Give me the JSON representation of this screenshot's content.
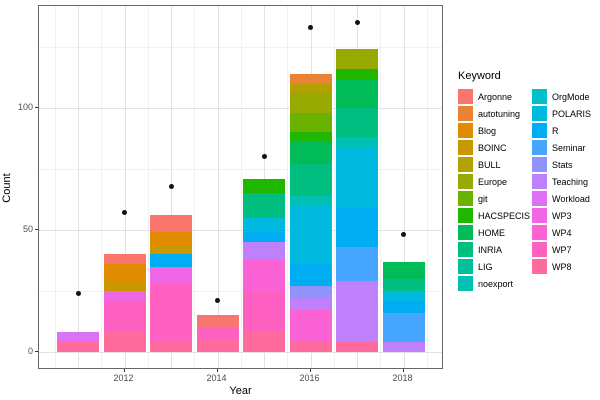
{
  "chart_data": {
    "type": "bar",
    "stacked": true,
    "title": "",
    "xlabel": "Year",
    "ylabel": "Count",
    "legend_title": "Keyword",
    "legend_position": "right",
    "ylim": [
      0,
      142
    ],
    "y_ticks": [
      0,
      50,
      100
    ],
    "y_minor_gridlines": [
      25,
      75,
      125
    ],
    "x_tick_labels": [
      "2012",
      "2014",
      "2016",
      "2018"
    ],
    "categories": [
      "2011",
      "2012",
      "2013",
      "2014",
      "2015",
      "2016",
      "2017",
      "2018"
    ],
    "keywords": [
      "Argonne",
      "autotuning",
      "Blog",
      "BOINC",
      "BULL",
      "Europe",
      "git",
      "HACSPECIS",
      "HOME",
      "INRIA",
      "LIG",
      "noexport",
      "OrgMode",
      "POLARIS",
      "R",
      "Seminar",
      "Stats",
      "Teaching",
      "Workload",
      "WP3",
      "WP4",
      "WP7",
      "WP8"
    ],
    "palette": {
      "Argonne": "#F8766D",
      "autotuning": "#EB8335",
      "Blog": "#E08B00",
      "BOINC": "#C99800",
      "BULL": "#B2A100",
      "Europe": "#97AA00",
      "git": "#6BB100",
      "HACSPECIS": "#1FB700",
      "HOME": "#00BB57",
      "INRIA": "#00BE7F",
      "LIG": "#00C098",
      "noexport": "#00C0B4",
      "OrgMode": "#00BFC8",
      "POLARIS": "#00B9DE",
      "R": "#00ACF2",
      "Seminar": "#45A5FF",
      "Stats": "#8F93FB",
      "Teaching": "#BF80FB",
      "Workload": "#DC71F6",
      "WP3": "#EF67E5",
      "WP4": "#FB62D4",
      "WP7": "#FF61C3",
      "WP8": "#FF6B9C"
    },
    "bars": [
      {
        "year": "2011",
        "total": 8,
        "segments_top_to_bottom": [
          {
            "keyword": "Workload",
            "count": 4
          },
          {
            "keyword": "WP8",
            "count": 4
          }
        ]
      },
      {
        "year": "2012",
        "total": 40,
        "segments_top_to_bottom": [
          {
            "keyword": "Argonne",
            "count": 4
          },
          {
            "keyword": "Blog",
            "count": 7
          },
          {
            "keyword": "BOINC",
            "count": 4
          },
          {
            "keyword": "WP3",
            "count": 4
          },
          {
            "keyword": "WP7",
            "count": 13
          },
          {
            "keyword": "WP8",
            "count": 8
          }
        ]
      },
      {
        "year": "2013",
        "total": 56,
        "segments_top_to_bottom": [
          {
            "keyword": "Argonne",
            "count": 7
          },
          {
            "keyword": "Blog",
            "count": 5
          },
          {
            "keyword": "BOINC",
            "count": 4
          },
          {
            "keyword": "R",
            "count": 5
          },
          {
            "keyword": "WP3",
            "count": 7
          },
          {
            "keyword": "WP7",
            "count": 24
          },
          {
            "keyword": "WP8",
            "count": 4
          }
        ]
      },
      {
        "year": "2014",
        "total": 15,
        "segments_top_to_bottom": [
          {
            "keyword": "Argonne",
            "count": 5
          },
          {
            "keyword": "WP7",
            "count": 5
          },
          {
            "keyword": "WP8",
            "count": 5
          }
        ]
      },
      {
        "year": "2015",
        "total": 71,
        "segments_top_to_bottom": [
          {
            "keyword": "HACSPECIS",
            "count": 6
          },
          {
            "keyword": "INRIA",
            "count": 10
          },
          {
            "keyword": "POLARIS",
            "count": 6
          },
          {
            "keyword": "R",
            "count": 4
          },
          {
            "keyword": "Teaching",
            "count": 7
          },
          {
            "keyword": "WP4",
            "count": 13
          },
          {
            "keyword": "WP7",
            "count": 17
          },
          {
            "keyword": "WP8",
            "count": 8
          }
        ]
      },
      {
        "year": "2016",
        "total": 114,
        "segments_top_to_bottom": [
          {
            "keyword": "autotuning",
            "count": 4
          },
          {
            "keyword": "BULL",
            "count": 4
          },
          {
            "keyword": "Europe",
            "count": 8
          },
          {
            "keyword": "git",
            "count": 8
          },
          {
            "keyword": "HACSPECIS",
            "count": 4
          },
          {
            "keyword": "HOME",
            "count": 9
          },
          {
            "keyword": "INRIA",
            "count": 13
          },
          {
            "keyword": "noexport",
            "count": 4
          },
          {
            "keyword": "POLARIS",
            "count": 24
          },
          {
            "keyword": "R",
            "count": 9
          },
          {
            "keyword": "Stats",
            "count": 5
          },
          {
            "keyword": "Teaching",
            "count": 5
          },
          {
            "keyword": "WP4",
            "count": 13
          },
          {
            "keyword": "WP8",
            "count": 4
          }
        ]
      },
      {
        "year": "2017",
        "total": 124,
        "segments_top_to_bottom": [
          {
            "keyword": "Europe",
            "count": 8
          },
          {
            "keyword": "HACSPECIS",
            "count": 4
          },
          {
            "keyword": "HOME",
            "count": 12
          },
          {
            "keyword": "INRIA",
            "count": 12
          },
          {
            "keyword": "noexport",
            "count": 4
          },
          {
            "keyword": "POLARIS",
            "count": 25
          },
          {
            "keyword": "R",
            "count": 16
          },
          {
            "keyword": "Seminar",
            "count": 14
          },
          {
            "keyword": "Teaching",
            "count": 25
          },
          {
            "keyword": "WP8",
            "count": 4
          }
        ]
      },
      {
        "year": "2018",
        "total": 37,
        "segments_top_to_bottom": [
          {
            "keyword": "HOME",
            "count": 7
          },
          {
            "keyword": "INRIA",
            "count": 5
          },
          {
            "keyword": "POLARIS",
            "count": 4
          },
          {
            "keyword": "R",
            "count": 5
          },
          {
            "keyword": "Seminar",
            "count": 12
          },
          {
            "keyword": "Teaching",
            "count": 4
          }
        ]
      }
    ],
    "points": [
      {
        "year": "2011",
        "value": 24
      },
      {
        "year": "2012",
        "value": 57
      },
      {
        "year": "2013",
        "value": 68
      },
      {
        "year": "2014",
        "value": 21
      },
      {
        "year": "2015",
        "value": 80
      },
      {
        "year": "2016",
        "value": 133
      },
      {
        "year": "2017",
        "value": 135
      },
      {
        "year": "2018",
        "value": 48
      }
    ]
  },
  "axis": {
    "y_tick_labels": [
      "0",
      "50",
      "100"
    ],
    "x_tick_labels": [
      "2012",
      "2014",
      "2016",
      "2018"
    ]
  },
  "legend": {
    "title": "Keyword",
    "column1": [
      "Argonne",
      "autotuning",
      "Blog",
      "BOINC",
      "BULL",
      "Europe",
      "git",
      "HACSPECIS",
      "HOME",
      "INRIA",
      "LIG",
      "noexport"
    ],
    "column2": [
      "OrgMode",
      "POLARIS",
      "R",
      "Seminar",
      "Stats",
      "Teaching",
      "Workload",
      "WP3",
      "WP4",
      "WP7",
      "WP8"
    ]
  }
}
